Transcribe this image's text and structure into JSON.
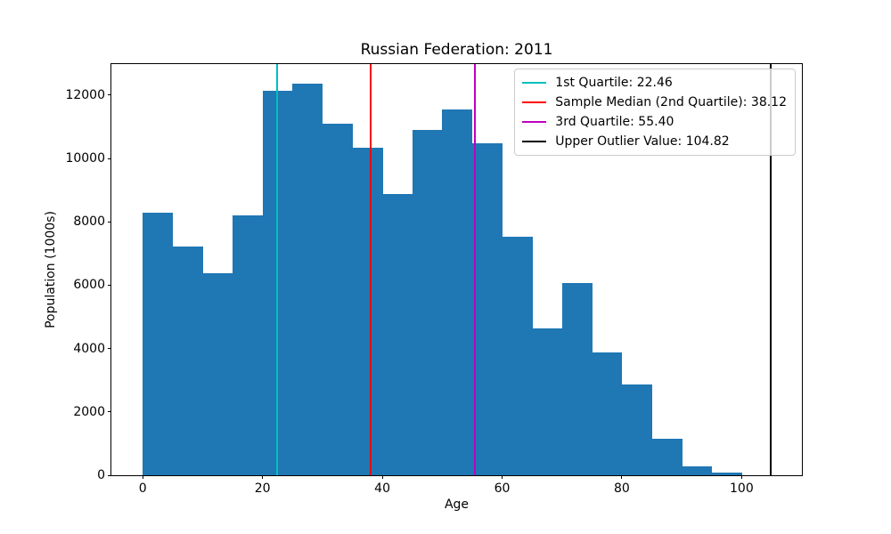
{
  "chart_data": {
    "type": "bar",
    "chart_kind": "histogram",
    "title": "Russian Federation: 2011",
    "xlabel": "Age",
    "ylabel": "Population (1000s)",
    "bar_color": "#1f77b4",
    "bin_edges": [
      0,
      5,
      10,
      15,
      20,
      25,
      30,
      35,
      40,
      45,
      50,
      55,
      60,
      65,
      70,
      75,
      80,
      85,
      90,
      95,
      100
    ],
    "categories": [
      "0-5",
      "5-10",
      "10-15",
      "15-20",
      "20-25",
      "25-30",
      "30-35",
      "35-40",
      "40-45",
      "45-50",
      "50-55",
      "55-60",
      "60-65",
      "65-70",
      "70-75",
      "75-80",
      "80-85",
      "85-90",
      "90-95",
      "95-100"
    ],
    "values": [
      8290,
      7220,
      6380,
      8200,
      12130,
      12360,
      11100,
      10340,
      8880,
      10900,
      11540,
      10480,
      7520,
      4630,
      6070,
      3880,
      2870,
      1150,
      270,
      80
    ],
    "xlim": [
      -5.24,
      110.06
    ],
    "ylim": [
      0,
      12980
    ],
    "xticks": [
      0,
      20,
      40,
      60,
      80,
      100
    ],
    "yticks": [
      0,
      2000,
      4000,
      6000,
      8000,
      10000,
      12000
    ],
    "grid": false,
    "legend": {
      "position": "upper right",
      "items": [
        {
          "label": "1st Quartile: 22.46",
          "color": "#00bfbf",
          "value": 22.46
        },
        {
          "label": "Sample Median (2nd Quartile): 38.12",
          "color": "#ff0000",
          "value": 38.12
        },
        {
          "label": "3rd Quartile: 55.40",
          "color": "#bf00bf",
          "value": 55.4
        },
        {
          "label": "Upper Outlier Value: 104.82",
          "color": "#000000",
          "value": 104.82
        }
      ]
    }
  }
}
